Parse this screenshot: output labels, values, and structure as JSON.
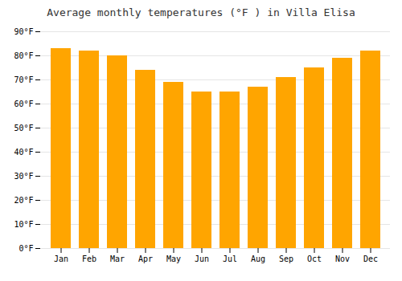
{
  "chart_data": {
    "type": "bar",
    "title": "Average monthly temperatures (°F ) in Villa Elisa",
    "categories": [
      "Jan",
      "Feb",
      "Mar",
      "Apr",
      "May",
      "Jun",
      "Jul",
      "Aug",
      "Sep",
      "Oct",
      "Nov",
      "Dec"
    ],
    "values": [
      83,
      82,
      80,
      74,
      69,
      65,
      65,
      67,
      71,
      75,
      79,
      82
    ],
    "color": "#FFA500",
    "ylim": [
      0,
      90
    ],
    "yticks": [
      {
        "value": 0,
        "label": "0°F"
      },
      {
        "value": 10,
        "label": "10°F"
      },
      {
        "value": 20,
        "label": "20°F"
      },
      {
        "value": 30,
        "label": "30°F"
      },
      {
        "value": 40,
        "label": "40°F"
      },
      {
        "value": 50,
        "label": "50°F"
      },
      {
        "value": 60,
        "label": "60°F"
      },
      {
        "value": 70,
        "label": "70°F"
      },
      {
        "value": 80,
        "label": "80°F"
      },
      {
        "value": 90,
        "label": "90°F"
      }
    ],
    "grid": true
  }
}
